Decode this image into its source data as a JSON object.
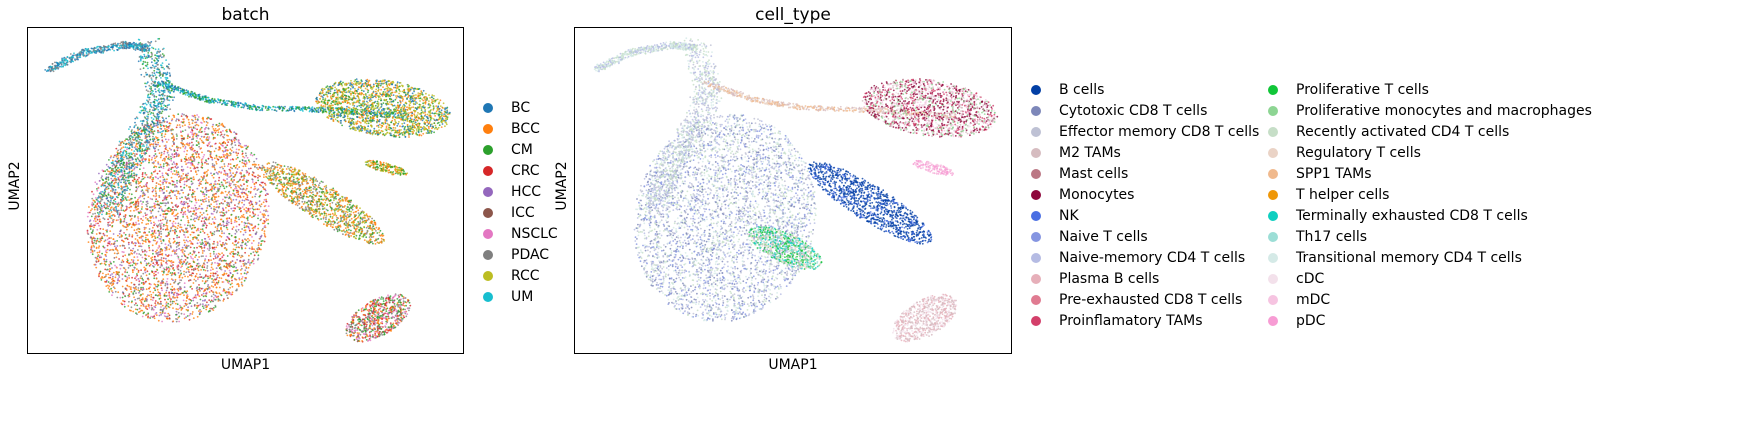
{
  "chart_data": [
    {
      "type": "scatter",
      "title": "batch",
      "xlabel": "UMAP1",
      "ylabel": "UMAP2",
      "grid": false,
      "legend_placement": "right",
      "categories": [
        {
          "name": "BC",
          "color": "#1f77b4"
        },
        {
          "name": "BCC",
          "color": "#ff7f0e"
        },
        {
          "name": "CM",
          "color": "#2ca02c"
        },
        {
          "name": "CRC",
          "color": "#d62728"
        },
        {
          "name": "HCC",
          "color": "#9467bd"
        },
        {
          "name": "ICC",
          "color": "#8c564b"
        },
        {
          "name": "NSCLC",
          "color": "#e377c2"
        },
        {
          "name": "PDAC",
          "color": "#7f7f7f"
        },
        {
          "name": "RCC",
          "color": "#bcbd22"
        },
        {
          "name": "UM",
          "color": "#17becf"
        }
      ],
      "clusters": [
        {
          "shape": "main-body",
          "mix": [
            "BCC",
            "BCC",
            "BCC",
            "NSCLC",
            "PDAC",
            "CRC",
            "HCC",
            "CM"
          ]
        },
        {
          "shape": "main-spine",
          "mix": [
            "CM",
            "BC",
            "UM",
            "PDAC"
          ]
        },
        {
          "shape": "tail",
          "mix": [
            "BC",
            "UM",
            "PDAC"
          ]
        },
        {
          "shape": "bridge",
          "mix": [
            "BC",
            "UM",
            "CM"
          ]
        },
        {
          "shape": "top-right",
          "mix": [
            "RCC",
            "CM",
            "BCC",
            "BC",
            "RCC"
          ]
        },
        {
          "shape": "middle-right",
          "mix": [
            "BCC",
            "BCC",
            "CM",
            "RCC",
            "PDAC"
          ]
        },
        {
          "shape": "small-right",
          "mix": [
            "BCC",
            "RCC",
            "CM"
          ]
        },
        {
          "shape": "bottom-right",
          "mix": [
            "BCC",
            "CM",
            "NSCLC",
            "CRC",
            "PDAC"
          ]
        }
      ]
    },
    {
      "type": "scatter",
      "title": "cell_type",
      "xlabel": "UMAP1",
      "ylabel": "UMAP2",
      "grid": false,
      "legend_placement": "right",
      "legend_columns": 2,
      "categories": [
        {
          "name": "B cells",
          "color": "#023fa5"
        },
        {
          "name": "Cytotoxic CD8 T cells",
          "color": "#7d87b9"
        },
        {
          "name": "Effector memory CD8 T cells",
          "color": "#bec1d4"
        },
        {
          "name": "M2 TAMs",
          "color": "#d6bcc0"
        },
        {
          "name": "Mast cells",
          "color": "#bb7784"
        },
        {
          "name": "Monocytes",
          "color": "#8e063b"
        },
        {
          "name": "NK",
          "color": "#4a6fe3"
        },
        {
          "name": "Naive T cells",
          "color": "#8595e1"
        },
        {
          "name": "Naive-memory CD4 T cells",
          "color": "#b5bbe3"
        },
        {
          "name": "Plasma B cells",
          "color": "#e6afb9"
        },
        {
          "name": "Pre-exhausted CD8 T cells",
          "color": "#e07b91"
        },
        {
          "name": "Proinflamatory TAMs",
          "color": "#d33f6a"
        },
        {
          "name": "Proliferative T cells",
          "color": "#11c638"
        },
        {
          "name": "Proliferative monocytes and macrophages",
          "color": "#8dd593"
        },
        {
          "name": "Recently activated CD4 T cells",
          "color": "#c6dec7"
        },
        {
          "name": "Regulatory T cells",
          "color": "#ead3c6"
        },
        {
          "name": "SPP1 TAMs",
          "color": "#f0b98d"
        },
        {
          "name": "T helper cells",
          "color": "#ef9708"
        },
        {
          "name": "Terminally exhausted CD8 T cells",
          "color": "#0fcfc0"
        },
        {
          "name": "Th17 cells",
          "color": "#9cded6"
        },
        {
          "name": "Transitional memory CD4 T cells",
          "color": "#d5eae7"
        },
        {
          "name": "cDC",
          "color": "#f3e1eb"
        },
        {
          "name": "mDC",
          "color": "#f6c4e1"
        },
        {
          "name": "pDC",
          "color": "#f79cd4"
        }
      ],
      "clusters": [
        {
          "shape": "main-body",
          "mix": [
            "Naive-memory CD4 T cells",
            "Effector memory CD8 T cells",
            "Cytotoxic CD8 T cells",
            "Naive T cells",
            "Transitional memory CD4 T cells",
            "Recently activated CD4 T cells"
          ]
        },
        {
          "shape": "main-spine",
          "mix": [
            "Effector memory CD8 T cells",
            "Transitional memory CD4 T cells",
            "Naive-memory CD4 T cells",
            "Recently activated CD4 T cells"
          ]
        },
        {
          "shape": "tail",
          "mix": [
            "Transitional memory CD4 T cells",
            "Recently activated CD4 T cells",
            "Naive-memory CD4 T cells"
          ]
        },
        {
          "shape": "bridge",
          "mix": [
            "SPP1 TAMs",
            "M2 TAMs",
            "Regulatory T cells"
          ]
        },
        {
          "shape": "top-right",
          "mix": [
            "Monocytes",
            "Monocytes",
            "Proinflamatory TAMs",
            "cDC",
            "mDC",
            "M2 TAMs",
            "Proliferative monocytes and macrophages"
          ]
        },
        {
          "shape": "middle-right",
          "mix": [
            "B cells",
            "B cells",
            "B cells",
            "NK"
          ]
        },
        {
          "shape": "small-right",
          "mix": [
            "pDC",
            "mDC"
          ]
        },
        {
          "shape": "bottom-right",
          "mix": [
            "Plasma B cells",
            "M2 TAMs",
            "cDC"
          ]
        },
        {
          "shape": "lower-green",
          "mix": [
            "Proliferative T cells",
            "Proliferative monocytes and macrophages",
            "Regulatory T cells",
            "Terminally exhausted CD8 T cells",
            "Th17 cells"
          ]
        }
      ]
    }
  ]
}
